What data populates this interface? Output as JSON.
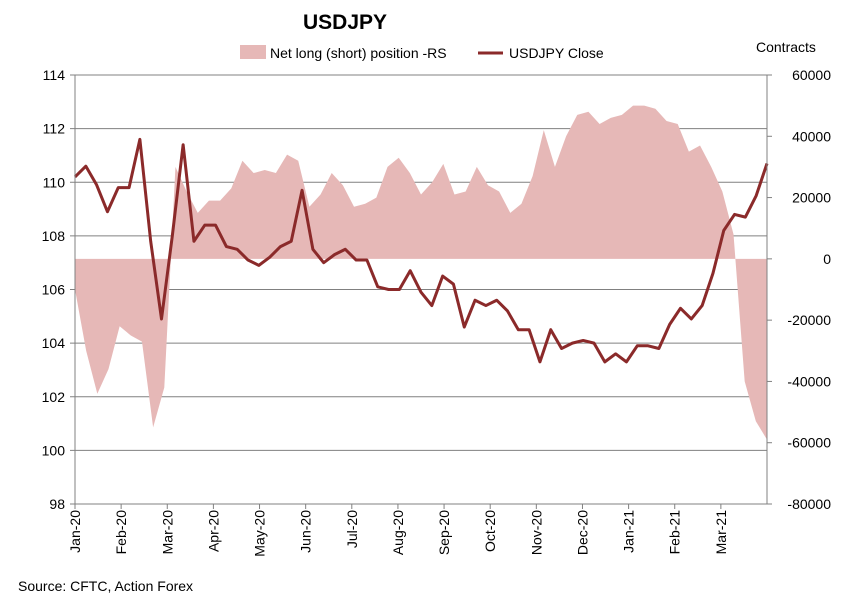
{
  "chart_data": {
    "type": "area+line",
    "title": "USDJPY",
    "source": "Source: CFTC, Action Forex",
    "right_axis_label": "Contracts",
    "legend_position": "top",
    "colors": {
      "area": "#e6b8b7",
      "line": "#8b2a2a",
      "grid": "#808080"
    },
    "left_axis": {
      "min": 98,
      "max": 114,
      "step": 2,
      "ticks": [
        "98",
        "100",
        "102",
        "104",
        "106",
        "108",
        "110",
        "112",
        "114"
      ]
    },
    "right_axis": {
      "min": -80000,
      "max": 60000,
      "step": 20000,
      "ticks": [
        "-80000",
        "-60000",
        "-40000",
        "-20000",
        "0",
        "20000",
        "40000",
        "60000"
      ]
    },
    "x_labels": [
      "Jan-20",
      "Feb-20",
      "Mar-20",
      "Apr-20",
      "May-20",
      "Jun-20",
      "Jul-20",
      "Aug-20",
      "Sep-20",
      "Oct-20",
      "Nov-20",
      "Dec-20",
      "Jan-21",
      "Feb-21",
      "Mar-21"
    ],
    "series": [
      {
        "name": "Net long (short) position -RS",
        "kind": "area",
        "axis": "right",
        "values": [
          -10000,
          -30000,
          -44000,
          -36000,
          -22000,
          -25000,
          -27000,
          -55000,
          -42000,
          30000,
          22000,
          15000,
          19000,
          19000,
          23000,
          32000,
          28000,
          29000,
          28000,
          34000,
          32000,
          17000,
          21000,
          28000,
          24000,
          17000,
          18000,
          20000,
          30000,
          33000,
          28000,
          21000,
          25000,
          31000,
          21000,
          22000,
          30000,
          24000,
          22000,
          15000,
          18000,
          27000,
          42000,
          30000,
          40000,
          47000,
          48000,
          44000,
          46000,
          47000,
          50000,
          50000,
          49000,
          45000,
          44000,
          35000,
          37000,
          30000,
          22000,
          8000,
          -40000,
          -53000,
          -59000
        ]
      },
      {
        "name": "USDJPY Close",
        "kind": "line",
        "axis": "left",
        "values": [
          110.2,
          110.6,
          109.9,
          108.9,
          109.8,
          109.8,
          111.6,
          107.8,
          104.9,
          108.0,
          111.4,
          107.8,
          108.4,
          108.4,
          107.6,
          107.5,
          107.1,
          106.9,
          107.2,
          107.6,
          107.8,
          109.7,
          107.5,
          107.0,
          107.3,
          107.5,
          107.1,
          107.1,
          106.1,
          106.0,
          106.0,
          106.7,
          105.9,
          105.4,
          106.5,
          106.2,
          104.6,
          105.6,
          105.4,
          105.6,
          105.2,
          104.5,
          104.5,
          103.3,
          104.5,
          103.8,
          104.0,
          104.1,
          104.0,
          103.3,
          103.6,
          103.3,
          103.9,
          103.9,
          103.8,
          104.7,
          105.3,
          104.9,
          105.4,
          106.6,
          108.2,
          108.8,
          108.7,
          109.5,
          110.7
        ]
      }
    ]
  }
}
